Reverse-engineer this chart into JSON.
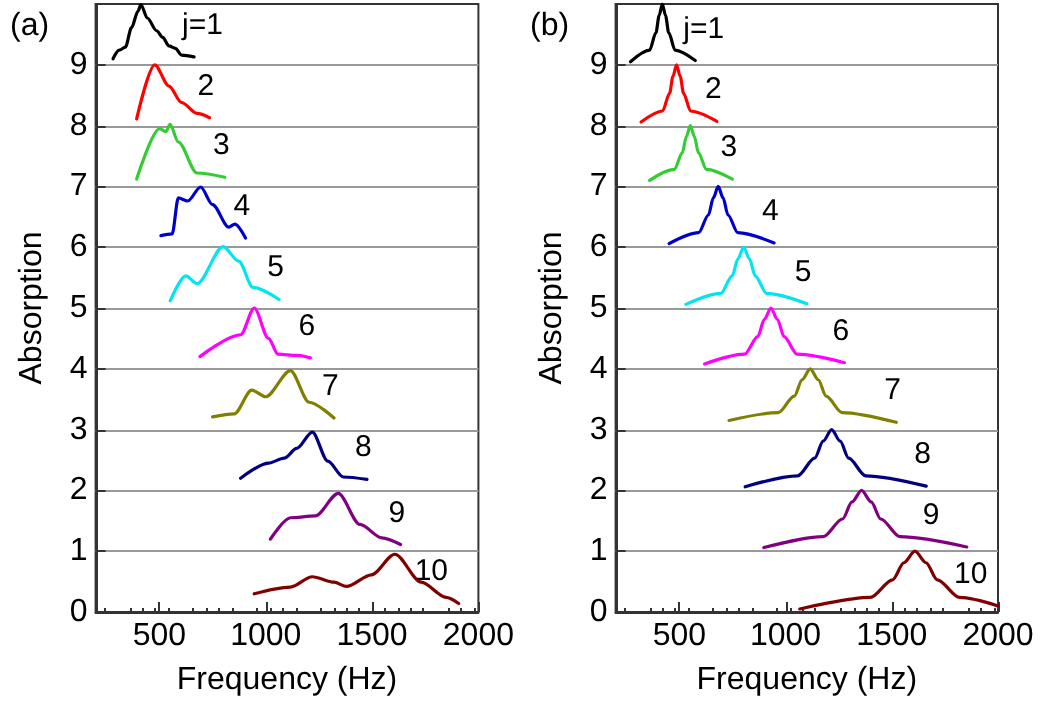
{
  "chart_data": [
    {
      "type": "line",
      "title": "(a)",
      "xlabel": "Frequency (Hz)",
      "ylabel": "Absorption",
      "xlim": [
        200,
        2000
      ],
      "xticks": [
        500,
        1000,
        1500,
        2000
      ],
      "ylim": [
        0,
        10
      ],
      "yticks": [
        0,
        1,
        2,
        3,
        4,
        5,
        6,
        7,
        8,
        9
      ],
      "grid": "y",
      "marker": "none",
      "line_style": "solid",
      "series": [
        {
          "name": "j=1",
          "color": "#000000",
          "x": [
            282,
            311,
            340,
            369,
            399,
            413,
            443,
            487,
            516,
            545,
            575,
            604,
            663
          ],
          "values": [
            9.1,
            9.24,
            9.29,
            9.61,
            9.88,
            9.99,
            9.77,
            9.56,
            9.45,
            9.31,
            9.27,
            9.16,
            9.13
          ]
        },
        {
          "name": "2",
          "color": "#ff0000",
          "x": [
            393,
            478,
            545,
            604,
            677,
            736
          ],
          "values": [
            8.11,
            9.0,
            8.65,
            8.38,
            8.2,
            8.13
          ]
        },
        {
          "name": "3",
          "color": "#33cc33",
          "x": [
            393,
            501,
            530,
            550,
            589,
            677,
            808
          ],
          "values": [
            7.12,
            7.95,
            7.9,
            8.02,
            7.73,
            7.22,
            7.15
          ]
        },
        {
          "name": "4",
          "color": "#0000cc",
          "x": [
            507,
            560,
            589,
            633,
            694,
            750,
            826,
            855,
            905
          ],
          "values": [
            6.19,
            6.22,
            6.81,
            6.76,
            6.99,
            6.7,
            6.33,
            6.38,
            6.15
          ]
        },
        {
          "name": "5",
          "color": "#00e5ee",
          "x": [
            551,
            624,
            677,
            800,
            873,
            940,
            1063
          ],
          "values": [
            5.12,
            5.53,
            5.4,
            6.01,
            5.77,
            5.34,
            5.14
          ]
        },
        {
          "name": "6",
          "color": "#ff00ff",
          "x": [
            691,
            882,
            946,
            1013,
            1058,
            1146,
            1210
          ],
          "values": [
            4.2,
            4.56,
            5.0,
            4.5,
            4.24,
            4.22,
            4.18
          ]
        },
        {
          "name": "7",
          "color": "#808000",
          "x": [
            750,
            852,
            934,
            1000,
            1116,
            1204,
            1321
          ],
          "values": [
            3.21,
            3.26,
            3.65,
            3.54,
            3.97,
            3.45,
            3.19
          ]
        },
        {
          "name": "8",
          "color": "#000080",
          "x": [
            882,
            1013,
            1087,
            1146,
            1219,
            1292,
            1365,
            1476
          ],
          "values": [
            2.2,
            2.45,
            2.53,
            2.69,
            2.96,
            2.48,
            2.22,
            2.18
          ]
        },
        {
          "name": "9",
          "color": "#800080",
          "x": [
            1022,
            1116,
            1233,
            1341,
            1443,
            1546,
            1634
          ],
          "values": [
            1.2,
            1.55,
            1.58,
            1.95,
            1.44,
            1.22,
            1.11
          ]
        },
        {
          "name": "10",
          "color": "#800000",
          "x": [
            946,
            1116,
            1219,
            1321,
            1380,
            1497,
            1607,
            1731,
            1848,
            1907
          ],
          "values": [
            0.3,
            0.41,
            0.58,
            0.49,
            0.42,
            0.61,
            0.95,
            0.49,
            0.24,
            0.14
          ]
        }
      ]
    },
    {
      "type": "line",
      "title": "(b)",
      "xlabel": "Frequency (Hz)",
      "ylabel": "Absorption",
      "xlim": [
        200,
        2000
      ],
      "xticks": [
        500,
        1000,
        1500,
        2000
      ],
      "ylim": [
        0,
        10
      ],
      "yticks": [
        0,
        1,
        2,
        3,
        4,
        5,
        6,
        7,
        8,
        9
      ],
      "grid": "y",
      "marker": "none",
      "line_style": "solid",
      "series": [
        {
          "name": "j=1",
          "color": "#000000",
          "x": [
            270,
            360,
            390,
            405,
            420,
            435,
            450,
            480,
            575
          ],
          "values": [
            9.05,
            9.24,
            9.53,
            9.81,
            10,
            9.81,
            9.53,
            9.24,
            9.07
          ]
        },
        {
          "name": "2",
          "color": "#ff0000",
          "x": [
            320,
            421,
            454,
            470,
            487,
            504,
            520,
            553,
            677
          ],
          "values": [
            8.06,
            8.24,
            8.53,
            8.81,
            9,
            8.81,
            8.53,
            8.24,
            8.07
          ]
        },
        {
          "name": "3",
          "color": "#33cc33",
          "x": [
            360,
            476,
            514,
            533,
            552,
            571,
            590,
            628,
            750
          ],
          "values": [
            7.1,
            7.28,
            7.55,
            7.82,
            8,
            7.82,
            7.55,
            7.28,
            7.12
          ]
        },
        {
          "name": "4",
          "color": "#0000cc",
          "x": [
            452,
            591,
            637,
            660,
            683,
            706,
            729,
            775,
            946
          ],
          "values": [
            6.06,
            6.24,
            6.53,
            6.81,
            7,
            6.81,
            6.53,
            6.24,
            6.07
          ]
        },
        {
          "name": "5",
          "color": "#00e5ee",
          "x": [
            531,
            695,
            749,
            776,
            803,
            830,
            857,
            911,
            1100
          ],
          "values": [
            5.06,
            5.24,
            5.53,
            5.81,
            6,
            5.81,
            5.53,
            5.24,
            5.07
          ]
        },
        {
          "name": "6",
          "color": "#ff00ff",
          "x": [
            619,
            807,
            869,
            900,
            931,
            962,
            993,
            1055,
            1277
          ],
          "values": [
            4.08,
            4.24,
            4.53,
            4.81,
            5,
            4.81,
            4.53,
            4.24,
            4.1
          ]
        },
        {
          "name": "7",
          "color": "#808000",
          "x": [
            734,
            966,
            1041,
            1078,
            1116,
            1154,
            1191,
            1266,
            1521
          ],
          "values": [
            3.15,
            3.28,
            3.55,
            3.82,
            4,
            3.82,
            3.55,
            3.28,
            3.12
          ]
        },
        {
          "name": "8",
          "color": "#000080",
          "x": [
            810,
            1057,
            1137,
            1177,
            1217,
            1257,
            1297,
            1377,
            1662
          ],
          "values": [
            2.06,
            2.24,
            2.53,
            2.81,
            3,
            2.81,
            2.53,
            2.24,
            2.07
          ]
        },
        {
          "name": "9",
          "color": "#800080",
          "x": [
            898,
            1178,
            1268,
            1313,
            1358,
            1403,
            1448,
            1538,
            1853
          ],
          "values": [
            1.06,
            1.24,
            1.53,
            1.81,
            2,
            1.81,
            1.53,
            1.24,
            1.07
          ]
        },
        {
          "name": "10",
          "color": "#800000",
          "x": [
            1067,
            1399,
            1504,
            1557,
            1609,
            1661,
            1714,
            1819,
            2000
          ],
          "values": [
            0.05,
            0.24,
            0.53,
            0.81,
            1,
            0.81,
            0.53,
            0.24,
            0.1
          ]
        }
      ]
    }
  ]
}
